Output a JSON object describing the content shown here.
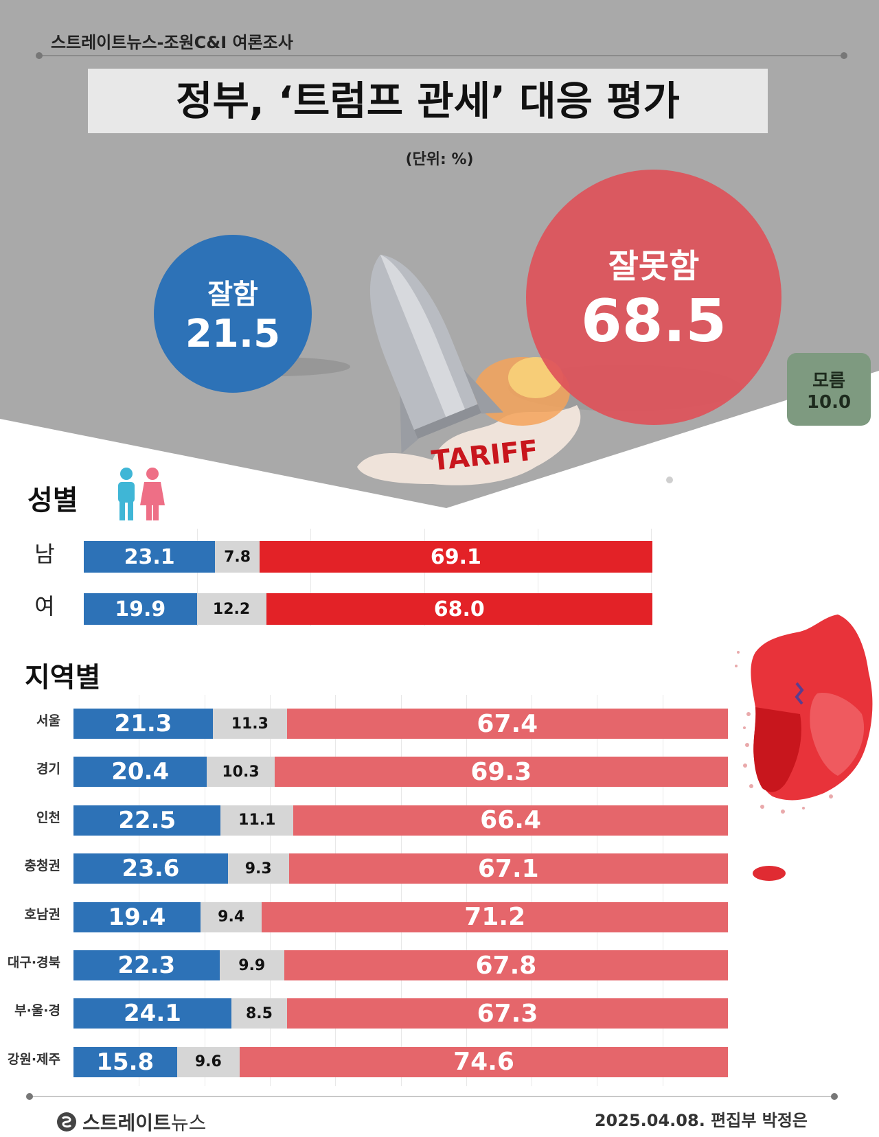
{
  "header": {
    "source": "스트레이트뉴스-조원C&I 여론조사",
    "title": "정부, ‘트럼프 관세’ 대응 평가",
    "unit": "(단위: %)"
  },
  "overall": {
    "good": {
      "label": "잘함",
      "value": "21.5"
    },
    "bad": {
      "label": "잘못함",
      "value": "68.5"
    },
    "dk": {
      "label": "모름",
      "value": "10.0"
    }
  },
  "illustration": {
    "text": "TARIFF"
  },
  "colors": {
    "good": "#2d72b7",
    "dk": "#d6d6d6",
    "bad_gender": "#e32227",
    "bad_region": "#e5666b"
  },
  "chart_data": [
    {
      "type": "bar",
      "stacked": true,
      "orientation": "horizontal",
      "title": "성별",
      "categories": [
        "남",
        "여"
      ],
      "series": [
        {
          "values": [
            23.1,
            19.9
          ]
        },
        {
          "values": [
            7.8,
            12.2
          ]
        },
        {
          "values": [
            69.1,
            68.0
          ]
        }
      ]
    },
    {
      "type": "bar",
      "stacked": true,
      "orientation": "horizontal",
      "title": "지역별",
      "categories": [
        "서울",
        "경기",
        "인천",
        "충청권",
        "호남권",
        "대구·경북",
        "부·울·경",
        "강원·제주"
      ],
      "series": [
        {
          "values": [
            21.3,
            20.4,
            22.5,
            23.6,
            19.4,
            22.3,
            24.1,
            15.8
          ]
        },
        {
          "values": [
            11.3,
            10.3,
            11.1,
            9.3,
            9.4,
            9.9,
            8.5,
            9.6
          ]
        },
        {
          "values": [
            67.4,
            69.3,
            66.4,
            67.1,
            71.2,
            67.8,
            67.3,
            74.6
          ]
        }
      ]
    }
  ],
  "footer": {
    "brand": "스트레이트",
    "brand_suffix": "뉴스",
    "credit": "2025.04.08. 편집부 박정은"
  }
}
